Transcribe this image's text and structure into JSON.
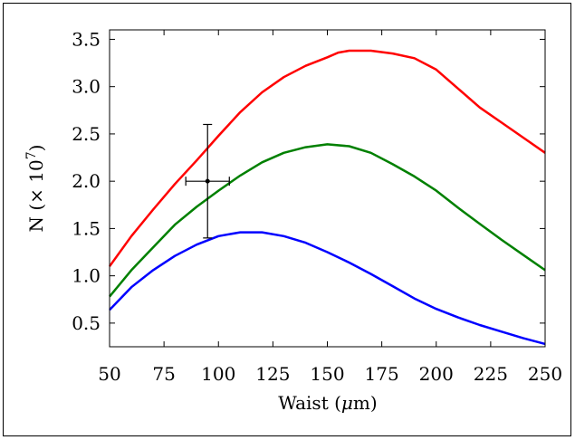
{
  "chart_data": {
    "type": "line",
    "xlabel_prefix": "Waist (",
    "xlabel_unit_symbol": "μ",
    "xlabel_suffix": "m)",
    "ylabel_prefix": "N (× 10",
    "ylabel_exponent": "7",
    "ylabel_suffix": ")",
    "xlim": [
      50,
      250
    ],
    "ylim": [
      0.25,
      3.6
    ],
    "xticks": [
      50,
      75,
      100,
      125,
      150,
      175,
      200,
      225,
      250
    ],
    "yticks": [
      0.5,
      1.0,
      1.5,
      2.0,
      2.5,
      3.0,
      3.5
    ],
    "ytick_labels": [
      "0.5",
      "1.0",
      "1.5",
      "2.0",
      "2.5",
      "3.0",
      "3.5"
    ],
    "grid": false,
    "series": [
      {
        "color": "#ff0000",
        "x": [
          50,
          60,
          70,
          80,
          90,
          100,
          110,
          120,
          130,
          140,
          150,
          155,
          160,
          170,
          180,
          190,
          200,
          210,
          220,
          230,
          240,
          250
        ],
        "y": [
          1.1,
          1.42,
          1.7,
          1.97,
          2.22,
          2.48,
          2.73,
          2.94,
          3.1,
          3.22,
          3.31,
          3.36,
          3.38,
          3.38,
          3.35,
          3.3,
          3.18,
          2.98,
          2.78,
          2.62,
          2.46,
          2.3
        ]
      },
      {
        "color": "#008000",
        "x": [
          50,
          60,
          70,
          80,
          90,
          100,
          110,
          120,
          130,
          140,
          150,
          160,
          170,
          180,
          190,
          200,
          210,
          220,
          230,
          240,
          250
        ],
        "y": [
          0.78,
          1.06,
          1.3,
          1.54,
          1.73,
          1.9,
          2.06,
          2.2,
          2.3,
          2.36,
          2.39,
          2.37,
          2.3,
          2.18,
          2.05,
          1.9,
          1.72,
          1.55,
          1.38,
          1.22,
          1.06
        ]
      },
      {
        "color": "#0000ff",
        "x": [
          50,
          60,
          70,
          80,
          90,
          100,
          110,
          120,
          130,
          140,
          150,
          160,
          170,
          180,
          190,
          200,
          210,
          220,
          230,
          240,
          250
        ],
        "y": [
          0.64,
          0.88,
          1.06,
          1.21,
          1.33,
          1.42,
          1.46,
          1.46,
          1.42,
          1.35,
          1.25,
          1.14,
          1.02,
          0.89,
          0.76,
          0.65,
          0.56,
          0.48,
          0.41,
          0.34,
          0.28
        ]
      }
    ],
    "data_point": {
      "x": 95,
      "y": 2.0,
      "x_err": 10,
      "y_err": 0.6
    }
  }
}
